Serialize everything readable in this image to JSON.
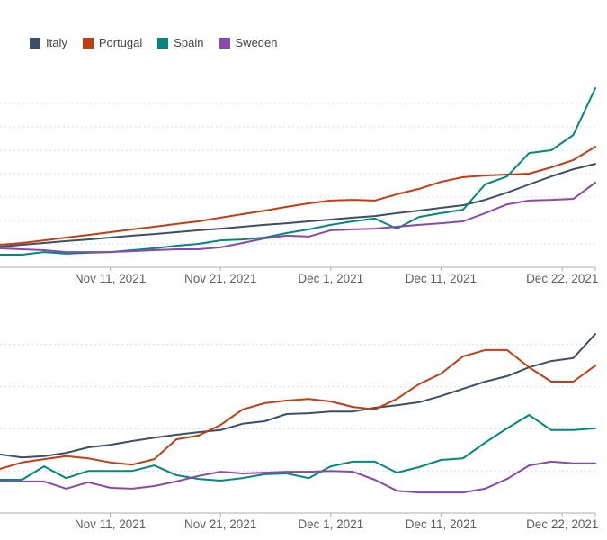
{
  "legend": {
    "items": [
      {
        "label": "Italy",
        "color": "#3D4F67"
      },
      {
        "label": "Portugal",
        "color": "#C33D12"
      },
      {
        "label": "Spain",
        "color": "#00897E"
      },
      {
        "label": "Sweden",
        "color": "#8A48AC"
      }
    ]
  },
  "chart_data": [
    {
      "name": "top-line-chart",
      "type": "line",
      "title": "",
      "xlabel": "",
      "ylabel": "",
      "grid": "horizontal-dashed",
      "legend_position": "top-left",
      "note": "y-axis value labels are cropped out of the screenshot; values are expressed in gridline units (1 unit = one dashed gridline above the baseline)",
      "ylim": [
        0,
        8.15
      ],
      "gridlines_at": [
        1,
        2,
        3,
        4,
        5,
        6,
        7
      ],
      "x_tick_labels": [
        "Nov 11, 2021",
        "Nov 21, 2021",
        "Dec 1, 2021",
        "Dec 11, 2021",
        "Dec 22, 2021"
      ],
      "x_tick_indices": [
        5,
        10,
        15,
        20,
        25.5
      ],
      "x": [
        "Nov 1",
        "Nov 3",
        "Nov 5",
        "Nov 7",
        "Nov 9",
        "Nov 11",
        "Nov 13",
        "Nov 15",
        "Nov 17",
        "Nov 19",
        "Nov 21",
        "Nov 23",
        "Nov 25",
        "Nov 27",
        "Nov 29",
        "Dec 1",
        "Dec 3",
        "Dec 5",
        "Dec 7",
        "Dec 9",
        "Dec 11",
        "Dec 13",
        "Dec 15",
        "Dec 17",
        "Dec 19",
        "Dec 21",
        "Dec 23",
        "Dec 25"
      ],
      "series": [
        {
          "name": "Italy",
          "color": "#3D4F67",
          "values": [
            0.88,
            0.96,
            1.04,
            1.12,
            1.19,
            1.27,
            1.35,
            1.42,
            1.5,
            1.58,
            1.65,
            1.73,
            1.81,
            1.88,
            1.96,
            2.04,
            2.12,
            2.19,
            2.31,
            2.42,
            2.54,
            2.65,
            2.88,
            3.19,
            3.54,
            3.88,
            4.19,
            4.42
          ]
        },
        {
          "name": "Portugal",
          "color": "#C33D12",
          "values": [
            0.96,
            1.04,
            1.15,
            1.27,
            1.38,
            1.5,
            1.62,
            1.73,
            1.85,
            1.96,
            2.12,
            2.27,
            2.42,
            2.58,
            2.73,
            2.85,
            2.88,
            2.85,
            3.12,
            3.35,
            3.65,
            3.85,
            3.92,
            3.96,
            4.0,
            4.27,
            4.58,
            5.15
          ]
        },
        {
          "name": "Spain",
          "color": "#00897E",
          "values": [
            0.54,
            0.54,
            0.65,
            0.58,
            0.62,
            0.65,
            0.73,
            0.81,
            0.92,
            1.0,
            1.15,
            1.19,
            1.27,
            1.46,
            1.62,
            1.81,
            1.96,
            2.08,
            1.65,
            2.15,
            2.31,
            2.46,
            3.54,
            3.88,
            4.88,
            5.0,
            5.65,
            7.65
          ]
        },
        {
          "name": "Sweden",
          "color": "#8A48AC",
          "values": [
            0.81,
            0.77,
            0.73,
            0.65,
            0.65,
            0.65,
            0.69,
            0.73,
            0.77,
            0.77,
            0.85,
            1.04,
            1.23,
            1.35,
            1.31,
            1.58,
            1.62,
            1.65,
            1.73,
            1.81,
            1.88,
            1.96,
            2.31,
            2.69,
            2.85,
            2.88,
            2.92,
            3.62
          ]
        }
      ]
    },
    {
      "name": "bottom-line-chart",
      "type": "line",
      "title": "",
      "xlabel": "",
      "ylabel": "",
      "grid": "horizontal-dashed",
      "note": "y-axis value labels are cropped out of the screenshot; values are expressed in gridline units (1 unit = one dashed gridline above the baseline)",
      "ylim": [
        0,
        4.8
      ],
      "gridlines_at": [
        1,
        2,
        3,
        4
      ],
      "x_tick_labels": [
        "Nov 11, 2021",
        "Nov 21, 2021",
        "Dec 1, 2021",
        "Dec 11, 2021",
        "Dec 22, 2021"
      ],
      "x_tick_indices": [
        5,
        10,
        15,
        20,
        25.5
      ],
      "x": [
        "Nov 1",
        "Nov 3",
        "Nov 5",
        "Nov 7",
        "Nov 9",
        "Nov 11",
        "Nov 13",
        "Nov 15",
        "Nov 17",
        "Nov 19",
        "Nov 21",
        "Nov 23",
        "Nov 25",
        "Nov 27",
        "Nov 29",
        "Dec 1",
        "Dec 3",
        "Dec 5",
        "Dec 7",
        "Dec 9",
        "Dec 11",
        "Dec 13",
        "Dec 15",
        "Dec 17",
        "Dec 19",
        "Dec 21",
        "Dec 23",
        "Dec 25"
      ],
      "series": [
        {
          "name": "Italy",
          "color": "#3D4F67",
          "values": [
            1.39,
            1.32,
            1.35,
            1.43,
            1.56,
            1.62,
            1.71,
            1.79,
            1.86,
            1.92,
            1.97,
            2.12,
            2.18,
            2.35,
            2.37,
            2.41,
            2.41,
            2.5,
            2.56,
            2.63,
            2.78,
            2.95,
            3.12,
            3.25,
            3.46,
            3.61,
            3.68,
            4.25
          ]
        },
        {
          "name": "Portugal",
          "color": "#C33D12",
          "values": [
            1.05,
            1.2,
            1.28,
            1.35,
            1.3,
            1.2,
            1.15,
            1.28,
            1.75,
            1.84,
            2.09,
            2.46,
            2.61,
            2.67,
            2.71,
            2.65,
            2.52,
            2.46,
            2.71,
            3.06,
            3.31,
            3.72,
            3.87,
            3.87,
            3.46,
            3.12,
            3.12,
            3.5
          ]
        },
        {
          "name": "Spain",
          "color": "#00897E",
          "values": [
            0.79,
            0.79,
            1.11,
            0.83,
            1.0,
            1.0,
            1.0,
            1.13,
            0.9,
            0.81,
            0.77,
            0.83,
            0.92,
            0.94,
            0.83,
            1.11,
            1.22,
            1.22,
            0.96,
            1.09,
            1.26,
            1.3,
            1.67,
            2.01,
            2.33,
            1.97,
            1.97,
            2.01
          ]
        },
        {
          "name": "Sweden",
          "color": "#8A48AC",
          "values": [
            0.75,
            0.75,
            0.75,
            0.58,
            0.73,
            0.6,
            0.58,
            0.64,
            0.75,
            0.88,
            0.98,
            0.94,
            0.96,
            0.98,
            0.98,
            1.0,
            0.98,
            0.79,
            0.53,
            0.49,
            0.49,
            0.49,
            0.58,
            0.81,
            1.13,
            1.22,
            1.18,
            1.18
          ]
        }
      ]
    }
  ]
}
